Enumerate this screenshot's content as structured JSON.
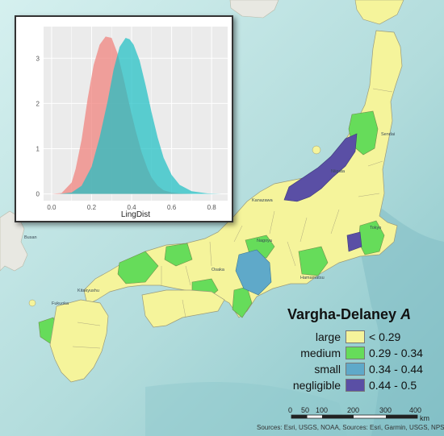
{
  "map": {
    "colors": {
      "sea_light": "#cfeeee",
      "sea_mid": "#b3dcdd",
      "sea_deep": "#86c2c9",
      "land_foreign": "#e9e9e4",
      "border": "#9b9b7a"
    }
  },
  "inset_chart": {
    "chart_data": {
      "type": "area",
      "xlabel": "LingDist",
      "ylabel": "",
      "xlim": [
        -0.04,
        0.88
      ],
      "ylim": [
        -0.15,
        3.7
      ],
      "x_ticks": [
        "0.0",
        "0.2",
        "0.4",
        "0.6",
        "0.8"
      ],
      "x_tick_values": [
        0.0,
        0.2,
        0.4,
        0.6,
        0.8
      ],
      "y_ticks": [
        "0",
        "1",
        "2",
        "3"
      ],
      "y_tick_values": [
        0,
        1,
        2,
        3
      ],
      "grid": true,
      "legend": "none",
      "series": [
        {
          "color": "#f07f7a",
          "x": [
            0.0,
            0.05,
            0.1,
            0.12,
            0.15,
            0.18,
            0.21,
            0.24,
            0.27,
            0.3,
            0.33,
            0.36,
            0.39,
            0.42,
            0.45,
            0.48,
            0.5,
            0.53,
            0.56,
            0.6,
            0.64,
            0.7
          ],
          "y": [
            0.0,
            0.02,
            0.25,
            0.55,
            1.2,
            2.1,
            2.85,
            3.3,
            3.48,
            3.45,
            3.1,
            2.55,
            1.95,
            1.4,
            0.92,
            0.55,
            0.36,
            0.18,
            0.08,
            0.03,
            0.01,
            0.0
          ]
        },
        {
          "color": "#1fbfc4",
          "x": [
            0.04,
            0.1,
            0.15,
            0.2,
            0.24,
            0.28,
            0.31,
            0.34,
            0.37,
            0.39,
            0.41,
            0.44,
            0.47,
            0.5,
            0.53,
            0.56,
            0.6,
            0.64,
            0.7,
            0.78,
            0.85
          ],
          "y": [
            0.0,
            0.03,
            0.18,
            0.6,
            1.25,
            2.05,
            2.75,
            3.25,
            3.45,
            3.42,
            3.3,
            2.95,
            2.4,
            1.8,
            1.25,
            0.8,
            0.42,
            0.2,
            0.06,
            0.01,
            0.0
          ]
        }
      ]
    }
  },
  "legend": {
    "title": "Vargha-Delaney ",
    "title_italic": "A",
    "items": [
      {
        "label": "large",
        "range": "< 0.29",
        "color": "#f5f49b"
      },
      {
        "label": "medium",
        "range": "0.29 - 0.34",
        "color": "#66dc5a"
      },
      {
        "label": "small",
        "range": "0.34 - 0.44",
        "color": "#5fa9c9"
      },
      {
        "label": "negligible",
        "range": "0.44 - 0.5",
        "color": "#5a4fa5"
      }
    ]
  },
  "scalebar": {
    "ticks": [
      "0",
      "50",
      "100",
      "200",
      "300",
      "400"
    ],
    "unit": "km"
  },
  "credit": "Sources: Esri, USGS, NOAA, Sources: Esri, Garmin, USGS, NPS",
  "places": [
    "Busan",
    "Fukuoka",
    "Kitakyushu",
    "Nagoya",
    "Osaka",
    "Tokyo",
    "Sendai",
    "Niigata",
    "Kanazawa",
    "Hamamatsu"
  ]
}
